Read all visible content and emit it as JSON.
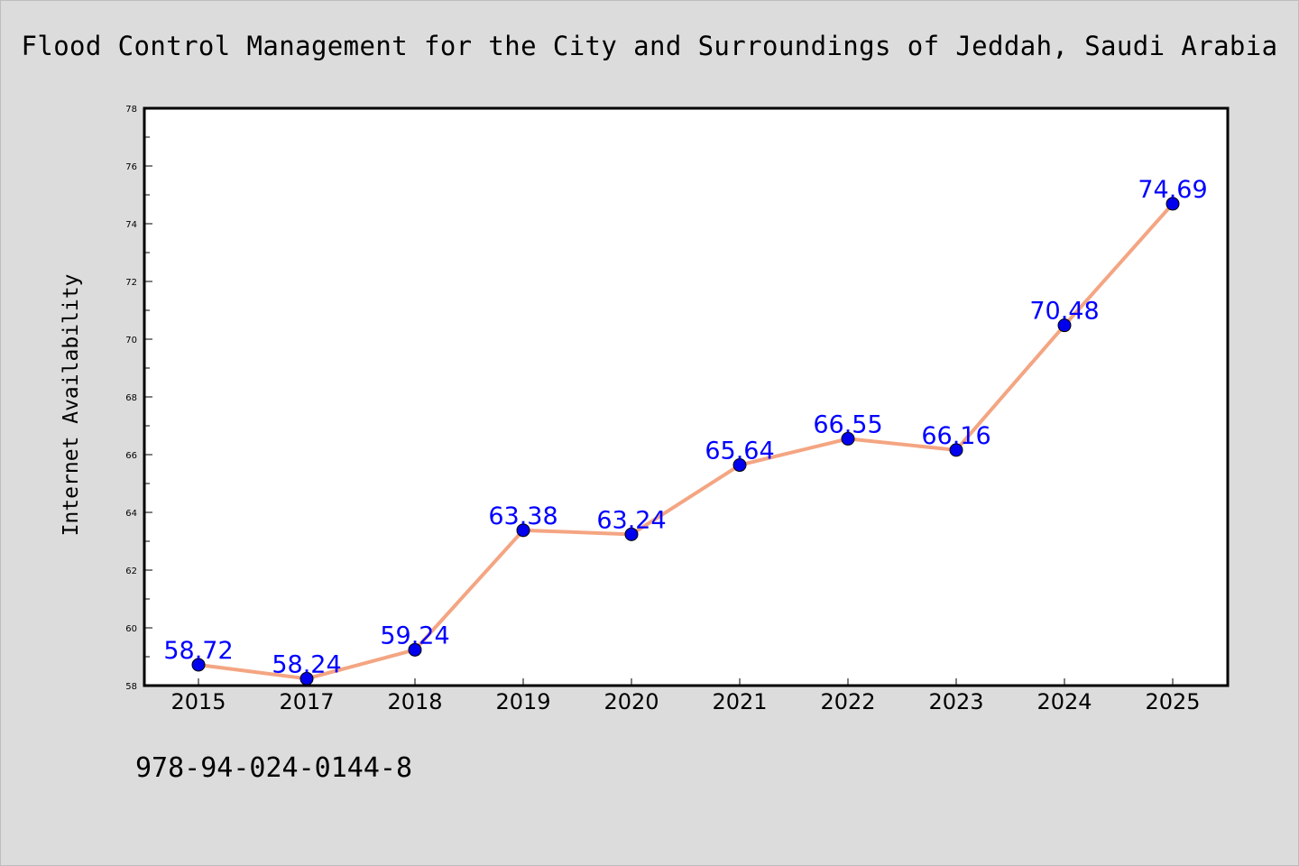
{
  "title": "Flood Control Management for the City and Surroundings of Jeddah, Saudi Arabia",
  "footnote": "978-94-024-0144-8",
  "chart_data": {
    "type": "line",
    "title": "Flood Control Management for the City and Surroundings of Jeddah, Saudi Arabia",
    "xlabel": "",
    "ylabel": "Internet Availability",
    "categories": [
      "2015",
      "2017",
      "2018",
      "2019",
      "2020",
      "2021",
      "2022",
      "2023",
      "2024",
      "2025"
    ],
    "series": [
      {
        "values": [
          58.72,
          58.24,
          59.24,
          63.38,
          63.24,
          65.64,
          66.55,
          66.16,
          70.48,
          74.69
        ]
      }
    ],
    "data_labels": [
      "58.72",
      "58.24",
      "59.24",
      "63.38",
      "63.24",
      "65.64",
      "66.55",
      "66.16",
      "70.48",
      "74.69"
    ],
    "ylim": [
      58,
      78
    ],
    "yticks": [
      "58",
      "60",
      "62",
      "64",
      "66",
      "68",
      "70",
      "72",
      "74",
      "76",
      "78"
    ],
    "grid": false,
    "line_color": "#f4a582",
    "marker_color": "#0000ee",
    "label_color": "#0000ff"
  }
}
